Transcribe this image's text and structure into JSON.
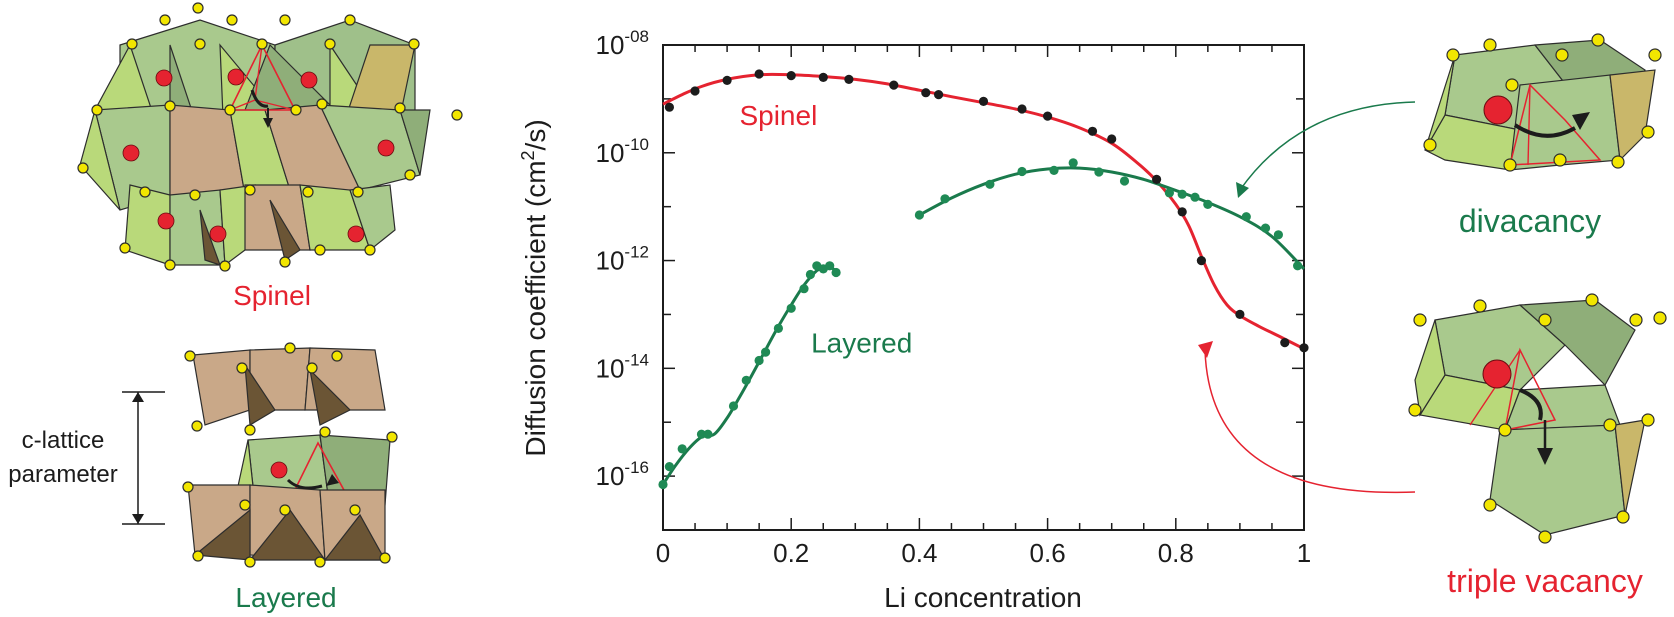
{
  "colors": {
    "spinel": "#e52330",
    "green": "#1a7a4c",
    "points": "#1c1c1c",
    "green_points": "#1f8a55",
    "oct_green": "#8fbf70",
    "oct_tan": "#c9a888",
    "oct_dark": "#6b5535",
    "vertex": "#f2e600",
    "li_atom": "#e52330"
  },
  "labels": {
    "spinel_structure": "Spinel",
    "layered_structure": "Layered",
    "c_lattice_1": "c-lattice",
    "c_lattice_2": "parameter",
    "divacancy": "divacancy",
    "triple_vacancy": "triple vacancy"
  },
  "chart_data": {
    "type": "scatter",
    "xlabel": "Li concentration",
    "ylabel_main": "Diffusion coefficient (cm",
    "ylabel_sup": "2",
    "ylabel_end": "/s)",
    "xlim": [
      0,
      1
    ],
    "ylim": [
      1e-17,
      1e-08
    ],
    "yscale": "log",
    "xticks": [
      {
        "v": 0,
        "label": "0"
      },
      {
        "v": 0.2,
        "label": "0.2"
      },
      {
        "v": 0.4,
        "label": "0.4"
      },
      {
        "v": 0.6,
        "label": "0.6"
      },
      {
        "v": 0.8,
        "label": "0.8"
      },
      {
        "v": 1,
        "label": "1"
      }
    ],
    "yticks": [
      {
        "v": 1e-08,
        "base": "10",
        "exp": "-08"
      },
      {
        "v": 1e-10,
        "base": "10",
        "exp": "-10"
      },
      {
        "v": 1e-12,
        "base": "10",
        "exp": "-12"
      },
      {
        "v": 1e-14,
        "base": "10",
        "exp": "-14"
      },
      {
        "v": 1e-16,
        "base": "10",
        "exp": "-16"
      }
    ],
    "series": [
      {
        "name": "Spinel",
        "color_key": "spinel",
        "point_color_key": "points",
        "label_at": [
          0.18,
          5e-10
        ],
        "points": [
          [
            0.01,
            7e-10
          ],
          [
            0.05,
            1.4e-09
          ],
          [
            0.1,
            2.2e-09
          ],
          [
            0.15,
            2.9e-09
          ],
          [
            0.2,
            2.7e-09
          ],
          [
            0.25,
            2.5e-09
          ],
          [
            0.29,
            2.3e-09
          ],
          [
            0.36,
            1.8e-09
          ],
          [
            0.41,
            1.3e-09
          ],
          [
            0.43,
            1.2e-09
          ],
          [
            0.5,
            9e-10
          ],
          [
            0.56,
            6.5e-10
          ],
          [
            0.6,
            4.8e-10
          ],
          [
            0.67,
            2.5e-10
          ],
          [
            0.7,
            1.8e-10
          ],
          [
            0.77,
            3.2e-11
          ],
          [
            0.81,
            8e-12
          ],
          [
            0.84,
            1e-12
          ],
          [
            0.9,
            1e-13
          ],
          [
            0.97,
            3e-14
          ],
          [
            1.0,
            2.4e-14
          ]
        ],
        "curve": [
          [
            0.0,
            8e-10
          ],
          [
            0.03,
            1.2e-09
          ],
          [
            0.06,
            1.7e-09
          ],
          [
            0.1,
            2.3e-09
          ],
          [
            0.15,
            2.8e-09
          ],
          [
            0.2,
            2.8e-09
          ],
          [
            0.25,
            2.6e-09
          ],
          [
            0.3,
            2.3e-09
          ],
          [
            0.35,
            1.9e-09
          ],
          [
            0.4,
            1.45e-09
          ],
          [
            0.45,
            1.1e-09
          ],
          [
            0.5,
            8.5e-10
          ],
          [
            0.55,
            6.5e-10
          ],
          [
            0.6,
            4.6e-10
          ],
          [
            0.65,
            2.9e-10
          ],
          [
            0.7,
            1.5e-10
          ],
          [
            0.74,
            6.5e-11
          ],
          [
            0.77,
            3e-11
          ],
          [
            0.8,
            1.1e-11
          ],
          [
            0.82,
            4.5e-12
          ],
          [
            0.84,
            1.2e-12
          ],
          [
            0.86,
            3.5e-13
          ],
          [
            0.88,
            1.5e-13
          ],
          [
            0.9,
            9.5e-14
          ],
          [
            0.93,
            6e-14
          ],
          [
            0.96,
            4e-14
          ],
          [
            1.0,
            2.3e-14
          ]
        ]
      },
      {
        "name": "",
        "color_key": "green",
        "point_color_key": "green_points",
        "points": [
          [
            0.4,
            7e-12
          ],
          [
            0.44,
            1.4e-11
          ],
          [
            0.51,
            2.6e-11
          ],
          [
            0.56,
            4.5e-11
          ],
          [
            0.61,
            4.7e-11
          ],
          [
            0.64,
            6.5e-11
          ],
          [
            0.68,
            4.4e-11
          ],
          [
            0.72,
            3e-11
          ],
          [
            0.79,
            1.8e-11
          ],
          [
            0.81,
            1.7e-11
          ],
          [
            0.83,
            1.5e-11
          ],
          [
            0.85,
            1.1e-11
          ],
          [
            0.91,
            6.5e-12
          ],
          [
            0.94,
            4e-12
          ],
          [
            0.96,
            3e-12
          ],
          [
            0.99,
            8e-13
          ]
        ],
        "curve": [
          [
            0.4,
            7e-12
          ],
          [
            0.45,
            1.45e-11
          ],
          [
            0.5,
            2.6e-11
          ],
          [
            0.55,
            4e-11
          ],
          [
            0.6,
            5e-11
          ],
          [
            0.65,
            5.2e-11
          ],
          [
            0.7,
            4.4e-11
          ],
          [
            0.75,
            3.2e-11
          ],
          [
            0.8,
            2e-11
          ],
          [
            0.85,
            1.2e-11
          ],
          [
            0.9,
            6.5e-12
          ],
          [
            0.95,
            2.8e-12
          ],
          [
            1.0,
            7e-13
          ]
        ]
      },
      {
        "name": "Layered",
        "color_key": "green",
        "point_color_key": "green_points",
        "label_at": [
          0.31,
          3e-14
        ],
        "points": [
          [
            0.0,
            7e-17
          ],
          [
            0.01,
            1.5e-16
          ],
          [
            0.03,
            3.2e-16
          ],
          [
            0.06,
            6e-16
          ],
          [
            0.07,
            6e-16
          ],
          [
            0.11,
            2e-15
          ],
          [
            0.13,
            6e-15
          ],
          [
            0.15,
            1.4e-14
          ],
          [
            0.16,
            2e-14
          ],
          [
            0.18,
            5.5e-14
          ],
          [
            0.2,
            1.3e-13
          ],
          [
            0.22,
            3e-13
          ],
          [
            0.23,
            5.5e-13
          ],
          [
            0.24,
            8e-13
          ],
          [
            0.25,
            7e-13
          ],
          [
            0.26,
            8e-13
          ],
          [
            0.27,
            6e-13
          ]
        ],
        "curve": [
          [
            0.0,
            7e-17
          ],
          [
            0.02,
            1.6e-16
          ],
          [
            0.04,
            3.2e-16
          ],
          [
            0.06,
            5.3e-16
          ],
          [
            0.08,
            6e-16
          ],
          [
            0.1,
            1.2e-15
          ],
          [
            0.12,
            3e-15
          ],
          [
            0.14,
            8e-15
          ],
          [
            0.16,
            2.2e-14
          ],
          [
            0.18,
            6e-14
          ],
          [
            0.2,
            1.5e-13
          ],
          [
            0.22,
            3.5e-13
          ],
          [
            0.24,
            6.5e-13
          ],
          [
            0.25,
            7e-13
          ],
          [
            0.26,
            7.5e-13
          ],
          [
            0.27,
            6.5e-13
          ]
        ]
      }
    ]
  }
}
